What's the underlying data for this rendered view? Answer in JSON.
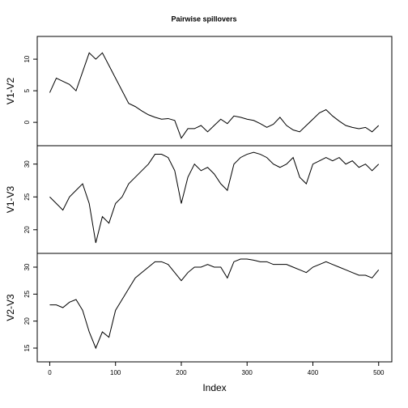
{
  "chart_data": {
    "type": "line",
    "title": "Pairwise spillovers",
    "xlabel": "Index",
    "color": "#000000",
    "x": [
      0,
      10,
      20,
      30,
      40,
      50,
      60,
      70,
      80,
      90,
      100,
      110,
      120,
      130,
      140,
      150,
      160,
      170,
      180,
      190,
      200,
      210,
      220,
      230,
      240,
      250,
      260,
      270,
      280,
      290,
      300,
      310,
      320,
      330,
      340,
      350,
      360,
      370,
      380,
      390,
      400,
      410,
      420,
      430,
      440,
      450,
      460,
      470,
      480,
      490,
      500
    ],
    "xlim": [
      -19,
      520
    ],
    "xticks": [
      0,
      100,
      200,
      300,
      400,
      500
    ],
    "panels": [
      {
        "ylabel": "V1-V2",
        "ylim": [
          -3.7,
          13.6
        ],
        "yticks": [
          0,
          5,
          10
        ],
        "values": [
          4.7,
          7,
          6.5,
          6,
          5,
          8,
          11,
          10,
          11,
          9,
          7,
          5,
          3,
          2.5,
          1.8,
          1.2,
          0.8,
          0.5,
          0.6,
          0.3,
          -2.5,
          -1,
          -1,
          -0.5,
          -1.5,
          -0.5,
          0.5,
          -0.2,
          1,
          0.8,
          0.5,
          0.3,
          -0.2,
          -0.8,
          -0.3,
          0.8,
          -0.5,
          -1.2,
          -1.5,
          -0.5,
          0.5,
          1.5,
          2,
          1,
          0.2,
          -0.5,
          -0.8,
          -1,
          -0.8,
          -1.5,
          -0.5
        ]
      },
      {
        "ylabel": "V1-V3",
        "ylim": [
          16.4,
          32.8
        ],
        "yticks": [
          20,
          25,
          30
        ],
        "values": [
          25,
          24,
          23,
          25,
          26,
          27,
          24,
          18,
          22,
          21,
          24,
          25,
          27,
          28,
          29,
          30,
          31.5,
          31.5,
          31,
          29,
          24,
          28,
          30,
          29,
          29.5,
          28.5,
          27,
          26,
          30,
          31,
          31.5,
          31.8,
          31.5,
          31,
          30,
          29.5,
          30,
          31,
          28,
          27,
          30,
          30.5,
          31,
          30.5,
          31,
          30,
          30.5,
          29.5,
          30,
          29,
          30
        ]
      },
      {
        "ylabel": "V2-V3",
        "ylim": [
          12.45,
          32.55
        ],
        "yticks": [
          15,
          20,
          25,
          30
        ],
        "values": [
          23,
          23,
          22.5,
          23.5,
          24,
          22,
          18,
          15,
          18,
          17,
          22,
          24,
          26,
          28,
          29,
          30,
          31,
          31,
          30.5,
          29,
          27.5,
          29,
          30,
          30,
          30.5,
          30,
          30,
          28,
          31,
          31.5,
          31.5,
          31.3,
          31,
          31,
          30.5,
          30.5,
          30.5,
          30,
          29.5,
          29,
          30,
          30.5,
          31,
          30.5,
          30,
          29.5,
          29,
          28.5,
          28.5,
          28,
          29.5
        ]
      }
    ]
  }
}
